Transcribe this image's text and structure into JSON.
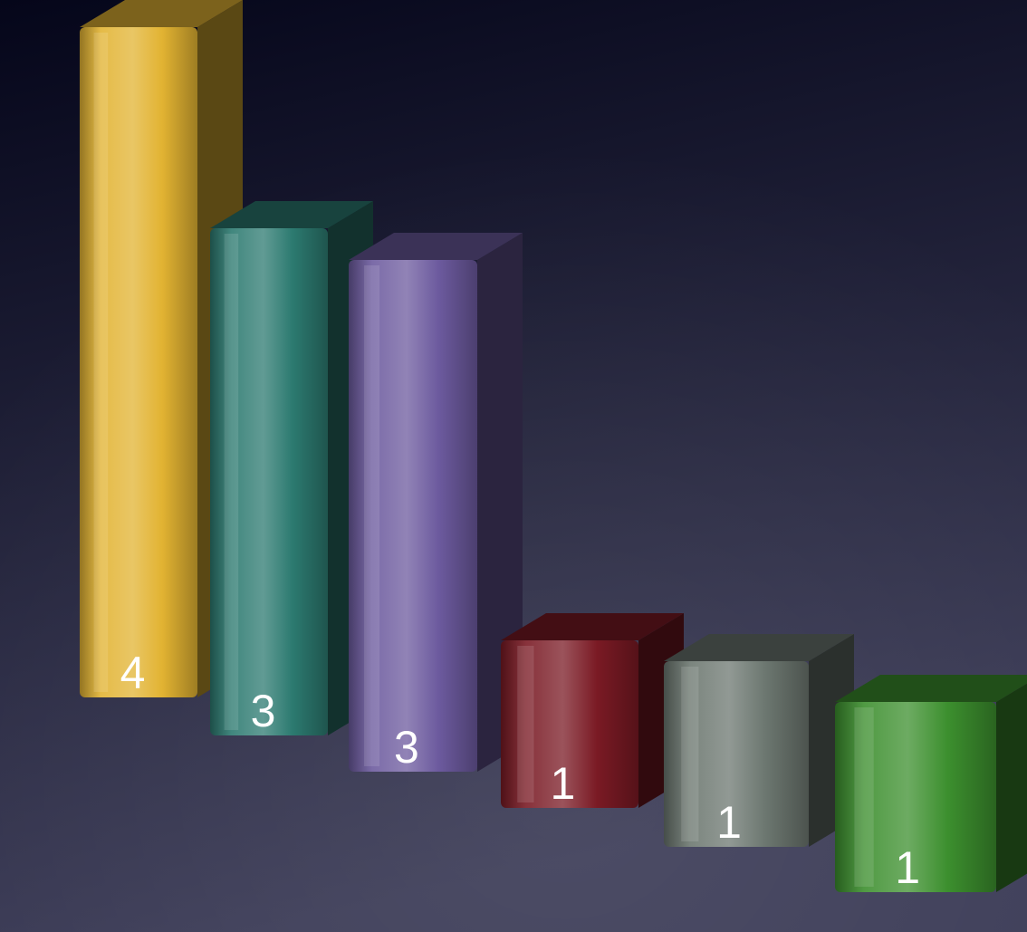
{
  "chart_data": {
    "type": "bar",
    "style": "3d",
    "title": "",
    "xlabel": "",
    "ylabel": "",
    "grid": false,
    "legend": "none",
    "ylim": [
      0,
      4
    ],
    "bars": [
      {
        "value": 4,
        "label": "4",
        "color": "#e2b332"
      },
      {
        "value": 3,
        "label": "3",
        "color": "#2c7a70"
      },
      {
        "value": 3,
        "label": "3",
        "color": "#6c5a9e"
      },
      {
        "value": 1,
        "label": "1",
        "color": "#7a1a24"
      },
      {
        "value": 1,
        "label": "1",
        "color": "#6c7770"
      },
      {
        "value": 1,
        "label": "1",
        "color": "#3c8f2e"
      }
    ]
  },
  "colors": {
    "background_top": "#05061a",
    "background_bottom": "#3d3d58"
  }
}
